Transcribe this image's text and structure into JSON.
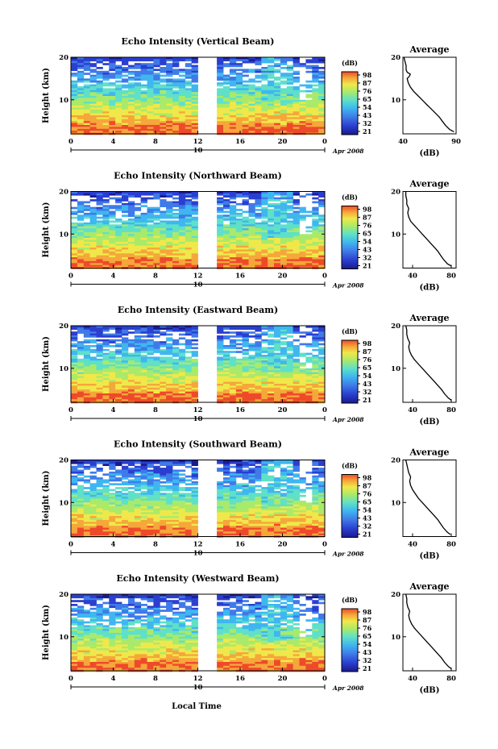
{
  "chart_data": [
    {
      "type": "heatmap",
      "title": "Echo Intensity (Vertical Beam)",
      "ylabel": "Height (km)",
      "x_ticks": [
        "0",
        "4",
        "8",
        "12",
        "16",
        "20",
        "0"
      ],
      "y_ticks": [
        "20",
        "10"
      ],
      "xlim": [
        0,
        24
      ],
      "ylim": [
        2,
        20
      ],
      "day_label": "10",
      "date_label": "Apr 2008",
      "data_gap_hours": [
        12.2,
        13.8
      ],
      "colorbar": {
        "unit": "(dB)",
        "ticks": [
          "98",
          "87",
          "76",
          "65",
          "54",
          "43",
          "32",
          "21"
        ]
      },
      "average_profile": {
        "title": "Average",
        "xlabel": "(dB)",
        "x_ticks": [
          "40",
          "90"
        ],
        "xlim": [
          40,
          90
        ],
        "y_ticks": [
          "20",
          "10"
        ],
        "ylim": [
          2,
          20
        ],
        "heights_km": [
          2.5,
          3,
          4,
          5,
          6,
          7,
          8,
          9,
          10,
          11,
          12,
          13,
          14,
          15,
          15.5,
          16,
          16.5,
          17,
          18,
          19,
          20
        ],
        "values_db": [
          88,
          84,
          80,
          77,
          74,
          70,
          66,
          62,
          58,
          54,
          50,
          47,
          45,
          44,
          46,
          47,
          44,
          43,
          43,
          42,
          41
        ]
      }
    },
    {
      "type": "heatmap",
      "title": "Echo Intensity (Northward Beam)",
      "ylabel": "Height (km)",
      "x_ticks": [
        "0",
        "4",
        "8",
        "12",
        "16",
        "20",
        "0"
      ],
      "y_ticks": [
        "20",
        "10"
      ],
      "xlim": [
        0,
        24
      ],
      "ylim": [
        2,
        20
      ],
      "day_label": "10",
      "date_label": "Apr 2008",
      "data_gap_hours": [
        12.2,
        13.8
      ],
      "colorbar": {
        "unit": "(dB)",
        "ticks": [
          "98",
          "87",
          "76",
          "65",
          "54",
          "43",
          "32",
          "21"
        ]
      },
      "average_profile": {
        "title": "Average",
        "xlabel": "(dB)",
        "x_ticks": [
          "40",
          "80"
        ],
        "xlim": [
          30,
          85
        ],
        "y_ticks": [
          "20",
          "10"
        ],
        "ylim": [
          2,
          20
        ],
        "heights_km": [
          2.5,
          3,
          4,
          5,
          6,
          7,
          8,
          9,
          10,
          11,
          12,
          13,
          14,
          15,
          16,
          17,
          18,
          19,
          20
        ],
        "values_db": [
          80,
          76,
          72,
          69,
          66,
          62,
          58,
          54,
          50,
          46,
          42,
          38,
          36,
          35,
          36,
          34,
          34,
          33,
          33
        ]
      }
    },
    {
      "type": "heatmap",
      "title": "Echo Intensity (Eastward Beam)",
      "ylabel": "Height (km)",
      "x_ticks": [
        "0",
        "4",
        "8",
        "12",
        "16",
        "20",
        "0"
      ],
      "y_ticks": [
        "20",
        "10"
      ],
      "xlim": [
        0,
        24
      ],
      "ylim": [
        2,
        20
      ],
      "day_label": "10",
      "date_label": "Apr 2008",
      "data_gap_hours": [
        12.2,
        13.8
      ],
      "colorbar": {
        "unit": "(dB)",
        "ticks": [
          "98",
          "87",
          "76",
          "65",
          "54",
          "43",
          "32",
          "21"
        ]
      },
      "average_profile": {
        "title": "Average",
        "xlabel": "(dB)",
        "x_ticks": [
          "40",
          "80"
        ],
        "xlim": [
          30,
          85
        ],
        "y_ticks": [
          "20",
          "10"
        ],
        "ylim": [
          2,
          20
        ],
        "heights_km": [
          2.5,
          3,
          4,
          5,
          6,
          7,
          8,
          9,
          10,
          11,
          12,
          13,
          14,
          15,
          16,
          17,
          18,
          19,
          20
        ],
        "values_db": [
          80,
          77,
          73,
          70,
          66,
          62,
          58,
          54,
          50,
          46,
          42,
          39,
          37,
          36,
          37,
          35,
          34,
          34,
          33
        ]
      }
    },
    {
      "type": "heatmap",
      "title": "Echo Intensity (Southward Beam)",
      "ylabel": "Height (km)",
      "x_ticks": [
        "0",
        "4",
        "8",
        "12",
        "16",
        "20",
        "0"
      ],
      "y_ticks": [
        "20",
        "10"
      ],
      "xlim": [
        0,
        24
      ],
      "ylim": [
        2,
        20
      ],
      "day_label": "10",
      "date_label": "Apr 2008",
      "data_gap_hours": [
        12.2,
        13.8
      ],
      "colorbar": {
        "unit": "(dB)",
        "ticks": [
          "98",
          "87",
          "76",
          "65",
          "54",
          "43",
          "32",
          "21"
        ]
      },
      "average_profile": {
        "title": "Average",
        "xlabel": "(dB)",
        "x_ticks": [
          "40",
          "80"
        ],
        "xlim": [
          30,
          85
        ],
        "y_ticks": [
          "20",
          "10"
        ],
        "ylim": [
          2,
          20
        ],
        "heights_km": [
          2.5,
          3,
          4,
          5,
          6,
          7,
          8,
          9,
          10,
          11,
          12,
          13,
          14,
          15,
          16,
          17,
          18,
          19,
          20
        ],
        "values_db": [
          79,
          76,
          72,
          69,
          66,
          62,
          58,
          54,
          50,
          46,
          43,
          40,
          38,
          37,
          38,
          36,
          35,
          34,
          33
        ]
      }
    },
    {
      "type": "heatmap",
      "title": "Echo Intensity (Westward Beam)",
      "ylabel": "Height (km)",
      "x_ticks": [
        "0",
        "4",
        "8",
        "12",
        "16",
        "20",
        "0"
      ],
      "y_ticks": [
        "20",
        "10"
      ],
      "xlim": [
        0,
        24
      ],
      "ylim": [
        2,
        20
      ],
      "day_label": "10",
      "date_label": "Apr 2008",
      "data_gap_hours": [
        12.2,
        13.8
      ],
      "colorbar": {
        "unit": "(dB)",
        "ticks": [
          "98",
          "87",
          "76",
          "65",
          "54",
          "43",
          "32",
          "21"
        ]
      },
      "average_profile": {
        "title": "Average",
        "xlabel": "(dB)",
        "x_ticks": [
          "40",
          "80"
        ],
        "xlim": [
          30,
          85
        ],
        "y_ticks": [
          "20",
          "10"
        ],
        "ylim": [
          2,
          20
        ],
        "heights_km": [
          2.5,
          3,
          4,
          5,
          6,
          7,
          8,
          9,
          10,
          11,
          12,
          13,
          14,
          15,
          16,
          17,
          18,
          19,
          20
        ],
        "values_db": [
          80,
          77,
          73,
          70,
          66,
          62,
          58,
          54,
          50,
          46,
          42,
          39,
          37,
          36,
          37,
          35,
          34,
          34,
          33
        ]
      }
    }
  ],
  "xlabel": "Local Time",
  "colors": {
    "scale": [
      "#1a1a8c",
      "#2a3fd0",
      "#3f7ae8",
      "#3fb6f0",
      "#5fe0c8",
      "#a9ea6a",
      "#f0e84a",
      "#f5a73a",
      "#ee4a2a"
    ]
  }
}
